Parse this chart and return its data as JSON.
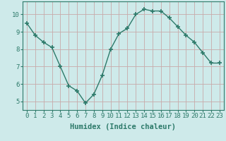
{
  "x": [
    0,
    1,
    2,
    3,
    4,
    5,
    6,
    7,
    8,
    9,
    10,
    11,
    12,
    13,
    14,
    15,
    16,
    17,
    18,
    19,
    20,
    21,
    22,
    23
  ],
  "y": [
    9.5,
    8.8,
    8.4,
    8.1,
    7.0,
    5.9,
    5.6,
    4.9,
    5.4,
    6.5,
    8.0,
    8.9,
    9.2,
    10.0,
    10.3,
    10.2,
    10.2,
    9.8,
    9.3,
    8.8,
    8.4,
    7.8,
    7.2,
    7.2
  ],
  "line_color": "#2d7a6a",
  "marker": "+",
  "marker_size": 4,
  "marker_lw": 1.2,
  "bg_color": "#ceeaea",
  "grid_color": "#c8aaaa",
  "xlabel": "Humidex (Indice chaleur)",
  "tick_color": "#2d7a6a",
  "spine_color": "#2d7a6a",
  "ylim": [
    4.5,
    10.75
  ],
  "xlim": [
    -0.5,
    23.5
  ],
  "yticks": [
    5,
    6,
    7,
    8,
    9,
    10
  ],
  "xticks": [
    0,
    1,
    2,
    3,
    4,
    5,
    6,
    7,
    8,
    9,
    10,
    11,
    12,
    13,
    14,
    15,
    16,
    17,
    18,
    19,
    20,
    21,
    22,
    23
  ],
  "tick_fontsize": 6.5,
  "xlabel_fontsize": 7.5,
  "line_width": 1.0
}
